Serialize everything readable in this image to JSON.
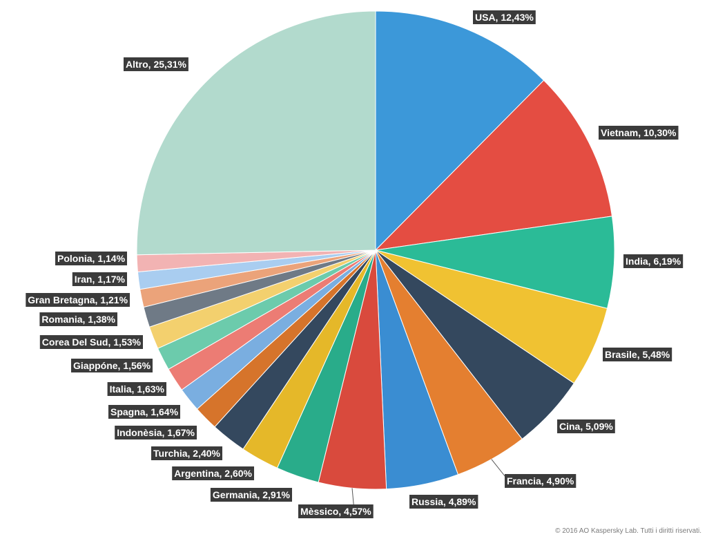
{
  "chart_data": {
    "type": "pie",
    "title": "",
    "slices": [
      {
        "label": "USA, 12,43%",
        "value": 12.43,
        "color": "#3c98d9"
      },
      {
        "label": "Vietnam, 10,30%",
        "value": 10.3,
        "color": "#e44d42"
      },
      {
        "label": "India, 6,19%",
        "value": 6.19,
        "color": "#2bbb97"
      },
      {
        "label": "Brasile, 5,48%",
        "value": 5.48,
        "color": "#f0c232"
      },
      {
        "label": "Cina, 5,09%",
        "value": 5.09,
        "color": "#34485e"
      },
      {
        "label": "Francia, 4,90%",
        "value": 4.9,
        "color": "#e47f30"
      },
      {
        "label": "Russia, 4,89%",
        "value": 4.89,
        "color": "#3a8dd2"
      },
      {
        "label": "Mèssico, 4,57%",
        "value": 4.57,
        "color": "#d94a3d"
      },
      {
        "label": "Germania, 2,91%",
        "value": 2.91,
        "color": "#29ac8a"
      },
      {
        "label": "Argentina, 2,60%",
        "value": 2.6,
        "color": "#e5b829"
      },
      {
        "label": "Turchia, 2,40%",
        "value": 2.4,
        "color": "#34485e"
      },
      {
        "label": "Indonèsia, 1,67%",
        "value": 1.67,
        "color": "#d6742b"
      },
      {
        "label": "Spagna, 1,64%",
        "value": 1.64,
        "color": "#7aaee0"
      },
      {
        "label": "Italia, 1,63%",
        "value": 1.63,
        "color": "#ec7c74"
      },
      {
        "label": "Giappóne, 1,56%",
        "value": 1.56,
        "color": "#6ccbac"
      },
      {
        "label": "Corea Del Sud, 1,53%",
        "value": 1.53,
        "color": "#f3d06e"
      },
      {
        "label": "Romania, 1,38%",
        "value": 1.38,
        "color": "#6f7a86"
      },
      {
        "label": "Gran Bretagna, 1,21%",
        "value": 1.21,
        "color": "#eba37a"
      },
      {
        "label": "Iran, 1,17%",
        "value": 1.17,
        "color": "#a9cdf0"
      },
      {
        "label": "Polonia, 1,14%",
        "value": 1.14,
        "color": "#f2b3b3"
      },
      {
        "label": "Altro, 25,31%",
        "value": 25.31,
        "color": "#b2dacd"
      }
    ],
    "legend": "none"
  },
  "footer": {
    "copyright": "© 2016 AO Kaspersky Lab. Tutti i diritti riservati."
  }
}
